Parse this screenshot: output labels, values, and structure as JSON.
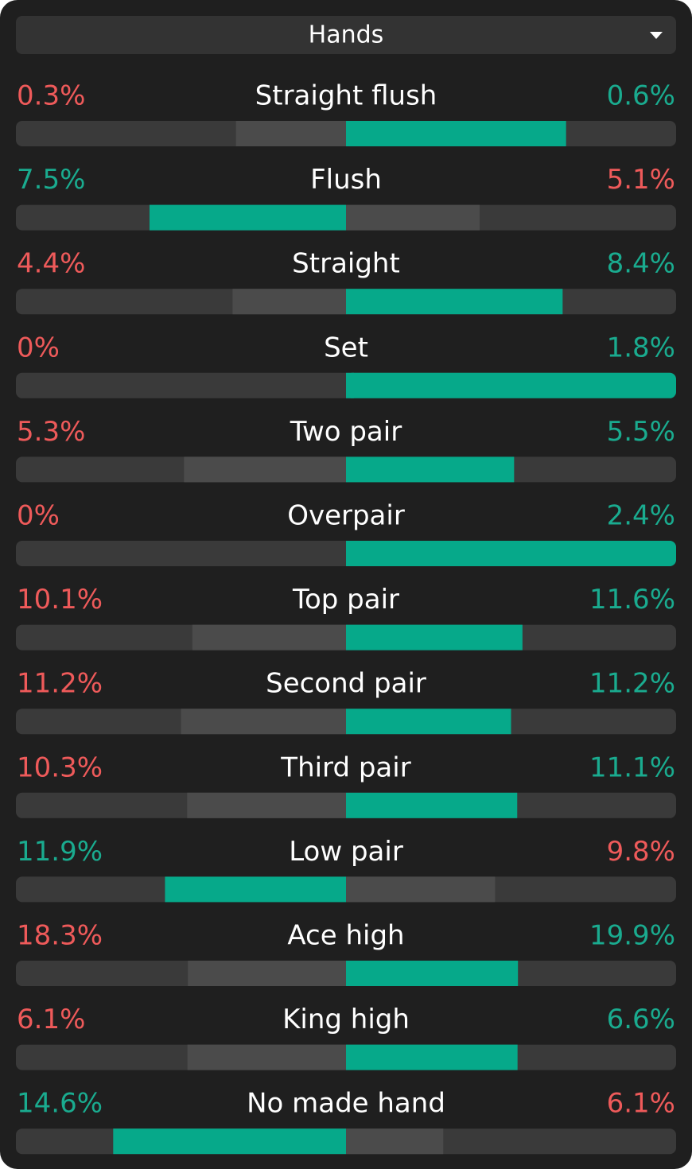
{
  "header": {
    "title": "Hands"
  },
  "rows": [
    {
      "label": "Straight flush",
      "left": {
        "value": 0.3,
        "label": "0.3%"
      },
      "right": {
        "value": 0.6,
        "label": "0.6%"
      }
    },
    {
      "label": "Flush",
      "left": {
        "value": 7.5,
        "label": "7.5%"
      },
      "right": {
        "value": 5.1,
        "label": "5.1%"
      }
    },
    {
      "label": "Straight",
      "left": {
        "value": 4.4,
        "label": "4.4%"
      },
      "right": {
        "value": 8.4,
        "label": "8.4%"
      }
    },
    {
      "label": "Set",
      "left": {
        "value": 0,
        "label": "0%"
      },
      "right": {
        "value": 1.8,
        "label": "1.8%"
      }
    },
    {
      "label": "Two pair",
      "left": {
        "value": 5.3,
        "label": "5.3%"
      },
      "right": {
        "value": 5.5,
        "label": "5.5%"
      }
    },
    {
      "label": "Overpair",
      "left": {
        "value": 0,
        "label": "0%"
      },
      "right": {
        "value": 2.4,
        "label": "2.4%"
      }
    },
    {
      "label": "Top pair",
      "left": {
        "value": 10.1,
        "label": "10.1%"
      },
      "right": {
        "value": 11.6,
        "label": "11.6%"
      }
    },
    {
      "label": "Second pair",
      "left": {
        "value": 11.2,
        "label": "11.2%"
      },
      "right": {
        "value": 11.2,
        "label": "11.2%"
      }
    },
    {
      "label": "Third pair",
      "left": {
        "value": 10.3,
        "label": "10.3%"
      },
      "right": {
        "value": 11.1,
        "label": "11.1%"
      }
    },
    {
      "label": "Low pair",
      "left": {
        "value": 11.9,
        "label": "11.9%"
      },
      "right": {
        "value": 9.8,
        "label": "9.8%"
      }
    },
    {
      "label": "Ace high",
      "left": {
        "value": 18.3,
        "label": "18.3%"
      },
      "right": {
        "value": 19.9,
        "label": "19.9%"
      }
    },
    {
      "label": "King high",
      "left": {
        "value": 6.1,
        "label": "6.1%"
      },
      "right": {
        "value": 6.6,
        "label": "6.6%"
      }
    },
    {
      "label": "No made hand",
      "left": {
        "value": 14.6,
        "label": "14.6%"
      },
      "right": {
        "value": 6.1,
        "label": "6.1%"
      }
    }
  ]
}
